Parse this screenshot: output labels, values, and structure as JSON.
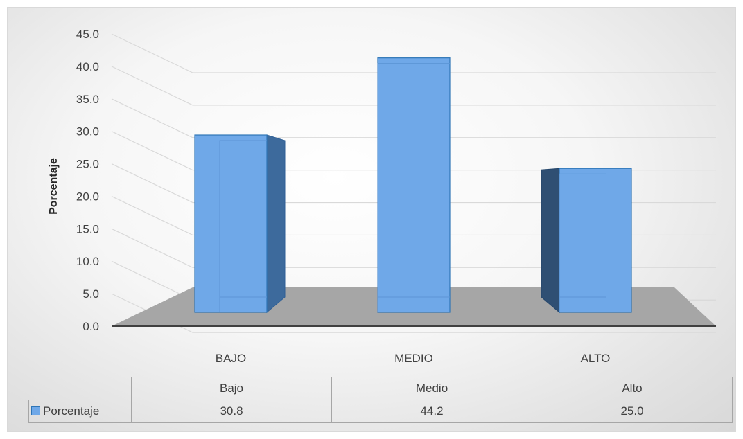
{
  "chart_data": {
    "type": "bar",
    "style": "3d-clustered-column",
    "categories": [
      "BAJO",
      "MEDIO",
      "ALTO"
    ],
    "series": [
      {
        "name": "Porcentaje",
        "values": [
          30.8,
          44.2,
          25.0
        ],
        "color": "#6fa8e8"
      }
    ],
    "ylabel": "Porcentaje",
    "xlabel": "",
    "ylim": [
      0,
      45
    ],
    "y_ticks": [
      "0.0",
      "5.0",
      "10.0",
      "15.0",
      "20.0",
      "25.0",
      "30.0",
      "35.0",
      "40.0",
      "45.0"
    ],
    "grid": true,
    "legend": "in-data-table",
    "data_table": {
      "headers": [
        "Bajo",
        "Medio",
        "Alto"
      ],
      "row_label": "Porcentaje",
      "values": [
        "30.8",
        "44.2",
        "25.0"
      ]
    }
  }
}
